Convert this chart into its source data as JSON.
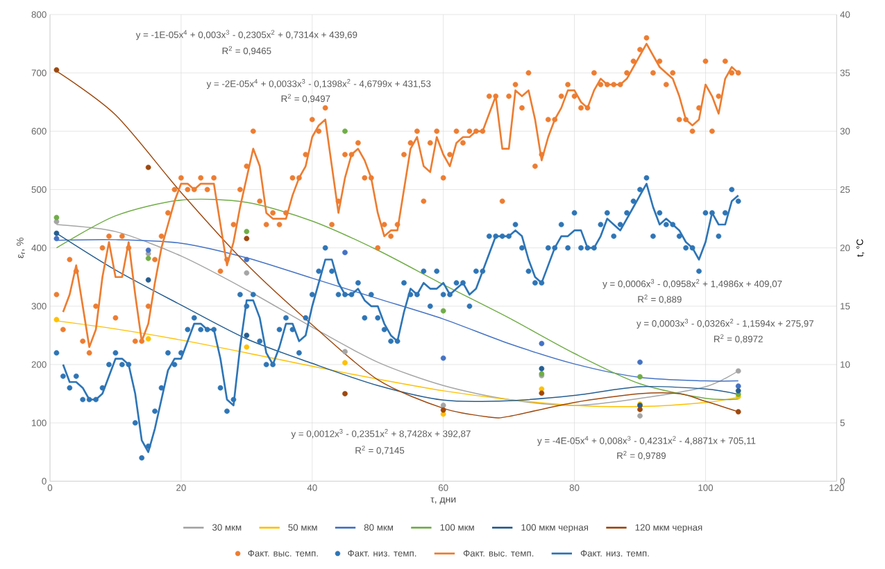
{
  "chart_data": {
    "type": "line",
    "xlabel": "τ, дни",
    "ylabel": "ε$_{r}$, %",
    "y2label": "t, °C",
    "xlim": [
      0,
      120
    ],
    "xticks": [
      0,
      20,
      40,
      60,
      80,
      100,
      120
    ],
    "ylim": [
      0,
      800
    ],
    "yticks": [
      0,
      100,
      200,
      300,
      400,
      500,
      600,
      700,
      800
    ],
    "y2lim": [
      0,
      40
    ],
    "y2ticks": [
      0,
      5,
      10,
      15,
      20,
      25,
      30,
      35,
      40
    ],
    "grid": true,
    "legend": "bottom",
    "annotations": [
      "y = -1E-05x$^{4}$ + 0,003x$^{3}$ - 0,2305x$^{2}$ + 0,7314x + 439,69",
      "R$^{2}$ = 0,9465",
      "y = -2E-05x$^{4}$ + 0,0033x$^{3}$ - 0,1398x$^{2}$ - 4,6799x + 431,53",
      "R$^{2}$ = 0,9497",
      "y = 0,0006x$^{3}$ - 0,0958x$^{2}$ + 1,4986x + 409,07",
      "R$^{2}$ = 0,889",
      "y = 0,0003x$^{3}$ - 0,0326x$^{2}$ - 1,1594x + 275,97",
      "R$^{2}$ = 0,8972",
      "y = 0,0012x$^{3}$ - 0,2351x$^{2}$ + 8,7428x + 392,87",
      "R$^{2}$ = 0,7145",
      "y = -4E-05x$^{4}$ + 0,008x$^{3}$ - 0,4231x$^{2}$ - 4,8871x + 705,11",
      "R$^{2}$ = 0,9789"
    ],
    "series": [
      {
        "name": "30 мкм",
        "color": "#a5a5a5",
        "x": [
          1,
          10,
          20,
          30,
          40,
          50,
          60,
          70,
          80,
          90,
          100,
          105
        ],
        "values": [
          440,
          428,
          386,
          328,
          264,
          204,
          164,
          140,
          130,
          142,
          162,
          189
        ]
      },
      {
        "name": "50 мкм",
        "color": "#ffc000",
        "x": [
          1,
          10,
          20,
          30,
          40,
          50,
          60,
          70,
          80,
          90,
          100,
          105
        ],
        "values": [
          275,
          261,
          242,
          220,
          197,
          175,
          155,
          140,
          130,
          128,
          135,
          144
        ]
      },
      {
        "name": "80 мкм",
        "color": "#4472c4",
        "x": [
          1,
          10,
          20,
          30,
          40,
          50,
          60,
          70,
          80,
          90,
          100,
          105
        ],
        "values": [
          413,
          414,
          408,
          383,
          348,
          313,
          278,
          236,
          201,
          178,
          172,
          172
        ]
      },
      {
        "name": "100 мкм",
        "color": "#70ad47",
        "x": [
          1,
          10,
          20,
          30,
          40,
          50,
          60,
          70,
          80,
          90,
          100,
          105
        ],
        "values": [
          400,
          455,
          482,
          478,
          446,
          396,
          337,
          280,
          219,
          167,
          142,
          141
        ]
      },
      {
        "name": "100 мкм черная",
        "color": "#255e91",
        "x": [
          1,
          10,
          20,
          30,
          40,
          50,
          60,
          70,
          80,
          90,
          100,
          105
        ],
        "values": [
          425,
          362,
          302,
          244,
          202,
          164,
          139,
          138,
          147,
          162,
          158,
          149
        ]
      },
      {
        "name": "120 мкм черная",
        "color": "#9e480e",
        "x": [
          1,
          10,
          20,
          30,
          40,
          50,
          60,
          67,
          70,
          80,
          90,
          96,
          100,
          105
        ],
        "values": [
          703,
          628,
          495,
          372,
          268,
          174,
          125,
          110,
          111,
          135,
          150,
          150,
          137,
          119
        ]
      },
      {
        "name": "Факт. выс. темп.",
        "type": "scatter",
        "marker": "circle",
        "axis": "y2",
        "color": "#ed7d31",
        "x": [
          1,
          2,
          3,
          4,
          5,
          6,
          7,
          8,
          9,
          10,
          11,
          12,
          13,
          14,
          15,
          16,
          17,
          18,
          19,
          20,
          21,
          22,
          23,
          24,
          25,
          26,
          27,
          28,
          29,
          30,
          31,
          32,
          33,
          34,
          35,
          36,
          37,
          38,
          39,
          40,
          41,
          42,
          43,
          44,
          45,
          46,
          47,
          48,
          49,
          50,
          51,
          52,
          53,
          54,
          55,
          56,
          57,
          58,
          59,
          60,
          61,
          62,
          63,
          64,
          65,
          66,
          67,
          68,
          69,
          70,
          71,
          72,
          73,
          74,
          75,
          76,
          77,
          78,
          79,
          80,
          81,
          82,
          83,
          84,
          85,
          86,
          87,
          88,
          89,
          90,
          91,
          92,
          93,
          94,
          95,
          96,
          97,
          98,
          99,
          100,
          101,
          102,
          103,
          104,
          105
        ],
        "values": [
          16,
          13,
          19,
          18,
          12,
          11,
          15,
          20,
          21,
          14,
          21,
          20,
          12,
          12,
          15,
          19,
          21,
          23,
          25,
          26,
          25,
          25,
          26,
          25,
          26,
          18,
          19,
          22,
          25,
          27,
          30,
          24,
          22,
          23,
          22,
          23,
          26,
          26,
          28,
          31,
          30,
          32,
          22,
          24,
          28,
          28,
          29,
          26,
          26,
          20,
          22,
          21,
          22,
          28,
          29,
          30,
          24,
          29,
          30,
          26,
          28,
          30,
          29,
          30,
          30,
          30,
          33,
          33,
          24,
          33,
          34,
          32,
          35,
          27,
          28,
          31,
          31,
          33,
          34,
          33,
          32,
          32,
          35,
          34,
          34,
          34,
          34,
          35,
          36,
          37,
          38,
          35,
          36,
          34,
          35,
          31,
          31,
          30,
          32,
          36,
          30,
          33,
          36,
          35,
          35
        ]
      },
      {
        "name": "Факт. низ. темп.",
        "type": "scatter",
        "marker": "circle",
        "axis": "y2",
        "color": "#2e75b6",
        "x": [
          1,
          2,
          3,
          4,
          5,
          6,
          7,
          8,
          9,
          10,
          11,
          12,
          13,
          14,
          15,
          16,
          17,
          18,
          19,
          20,
          21,
          22,
          23,
          24,
          25,
          26,
          27,
          28,
          29,
          30,
          31,
          32,
          33,
          34,
          35,
          36,
          37,
          38,
          39,
          40,
          41,
          42,
          43,
          44,
          45,
          46,
          47,
          48,
          49,
          50,
          51,
          52,
          53,
          54,
          55,
          56,
          57,
          58,
          59,
          60,
          61,
          62,
          63,
          64,
          65,
          66,
          67,
          68,
          69,
          70,
          71,
          72,
          73,
          74,
          75,
          76,
          77,
          78,
          79,
          80,
          81,
          82,
          83,
          84,
          85,
          86,
          87,
          88,
          89,
          90,
          91,
          92,
          93,
          94,
          95,
          96,
          97,
          98,
          99,
          100,
          101,
          102,
          103,
          104,
          105
        ],
        "values": [
          11,
          9,
          8,
          9,
          7,
          7,
          7,
          8,
          10,
          11,
          10,
          10,
          5,
          2,
          3,
          6,
          8,
          11,
          10,
          11,
          13,
          14,
          13,
          13,
          13,
          8,
          6,
          7,
          16,
          15,
          16,
          12,
          10,
          10,
          13,
          14,
          13,
          11,
          14,
          16,
          18,
          20,
          18,
          16,
          16,
          16,
          17,
          14,
          16,
          14,
          13,
          12,
          12,
          17,
          16,
          16,
          18,
          15,
          18,
          16,
          16,
          17,
          17,
          15,
          18,
          18,
          21,
          21,
          21,
          21,
          22,
          20,
          18,
          17,
          17,
          20,
          20,
          22,
          20,
          23,
          20,
          20,
          20,
          22,
          23,
          21,
          22,
          23,
          24,
          25,
          26,
          21,
          23,
          22,
          22,
          21,
          20,
          20,
          18,
          23,
          23,
          21,
          23,
          25,
          24
        ]
      },
      {
        "name": "Факт. выс. темп.",
        "type": "line",
        "axis": "y2",
        "color": "#ed7d31",
        "x": [
          2,
          3,
          4,
          5,
          6,
          7,
          8,
          9,
          10,
          11,
          12,
          13,
          14,
          15,
          16,
          17,
          18,
          19,
          20,
          21,
          22,
          23,
          24,
          25,
          26,
          27,
          28,
          29,
          30,
          31,
          32,
          33,
          34,
          35,
          36,
          37,
          38,
          39,
          40,
          41,
          42,
          43,
          44,
          45,
          46,
          47,
          48,
          49,
          50,
          51,
          52,
          53,
          54,
          55,
          56,
          57,
          58,
          59,
          60,
          61,
          62,
          63,
          64,
          65,
          66,
          67,
          68,
          69,
          70,
          71,
          72,
          73,
          74,
          75,
          76,
          77,
          78,
          79,
          80,
          81,
          82,
          83,
          84,
          85,
          86,
          87,
          88,
          89,
          90,
          91,
          92,
          93,
          94,
          95,
          96,
          97,
          98,
          99,
          100,
          101,
          102,
          103,
          104,
          105
        ],
        "values": [
          14.5,
          16,
          18.5,
          15,
          11.5,
          13,
          17.5,
          20.5,
          17.5,
          17.5,
          20.5,
          16,
          12,
          13.5,
          17,
          20,
          22,
          24,
          25.5,
          25.5,
          25,
          25.5,
          25.5,
          25.5,
          22,
          18.5,
          20.5,
          23.5,
          26,
          28.5,
          27,
          23,
          22.5,
          22.5,
          22.5,
          24.5,
          26,
          27,
          29.5,
          30.5,
          31,
          27,
          23,
          26,
          28,
          28.5,
          27.5,
          26,
          23,
          21,
          21.5,
          21.5,
          25,
          28.5,
          29.5,
          27,
          26.5,
          29.5,
          28,
          27,
          29,
          29.5,
          29.5,
          30,
          30,
          31.5,
          33,
          28.5,
          28.5,
          33.5,
          33,
          33.5,
          31,
          27.5,
          29.5,
          31,
          32,
          33.5,
          33.5,
          32.5,
          32,
          33.5,
          34.5,
          34,
          34,
          34,
          34.5,
          35.5,
          36.5,
          37.5,
          36.5,
          35.5,
          35,
          34.5,
          33,
          31,
          30.5,
          31,
          34,
          33,
          31.5,
          34.5,
          35.5,
          35
        ]
      },
      {
        "name": "Факт. низ. темп.",
        "type": "line",
        "axis": "y2",
        "color": "#2e75b6",
        "x": [
          2,
          3,
          4,
          5,
          6,
          7,
          8,
          9,
          10,
          11,
          12,
          13,
          14,
          15,
          16,
          17,
          18,
          19,
          20,
          21,
          22,
          23,
          24,
          25,
          26,
          27,
          28,
          29,
          30,
          31,
          32,
          33,
          34,
          35,
          36,
          37,
          38,
          39,
          40,
          41,
          42,
          43,
          44,
          45,
          46,
          47,
          48,
          49,
          50,
          51,
          52,
          53,
          54,
          55,
          56,
          57,
          58,
          59,
          60,
          61,
          62,
          63,
          64,
          65,
          66,
          67,
          68,
          69,
          70,
          71,
          72,
          73,
          74,
          75,
          76,
          77,
          78,
          79,
          80,
          81,
          82,
          83,
          84,
          85,
          86,
          87,
          88,
          89,
          90,
          91,
          92,
          93,
          94,
          95,
          96,
          97,
          98,
          99,
          100,
          101,
          102,
          103,
          104,
          105
        ],
        "values": [
          10,
          8.5,
          8.5,
          8,
          7,
          7,
          7.5,
          9,
          10.5,
          10.5,
          10,
          7.5,
          3.5,
          2.5,
          4.5,
          7,
          9.5,
          10.5,
          10.5,
          12,
          13.5,
          13.5,
          13,
          13,
          10.5,
          7,
          6.5,
          11.5,
          15.5,
          15.5,
          14,
          11,
          10,
          11.5,
          13.5,
          13.5,
          12,
          12.5,
          15,
          17,
          19,
          19,
          17,
          16,
          16,
          16.5,
          15.5,
          15,
          15,
          13.5,
          12.5,
          12,
          14.5,
          16.5,
          16,
          17,
          16.5,
          16.5,
          17,
          16,
          16.5,
          17,
          16,
          16.5,
          18,
          19.5,
          21,
          21,
          21,
          21.5,
          21,
          19,
          17.5,
          17,
          18.5,
          20,
          21,
          21,
          21.5,
          21.5,
          20,
          20,
          21,
          22.5,
          22,
          21.5,
          22.5,
          23.5,
          24.5,
          25.5,
          23.5,
          22,
          22.5,
          22,
          21.5,
          20.5,
          20,
          19,
          20.5,
          23,
          22,
          22,
          24,
          24.5
        ]
      },
      {
        "type": "scatter",
        "marker": "circle",
        "color": "#a5a5a5",
        "x": [
          1,
          15,
          30,
          45,
          60,
          75,
          90,
          105
        ],
        "values": [
          445,
          390,
          357,
          222,
          130,
          181,
          112,
          189
        ]
      },
      {
        "type": "scatter",
        "marker": "circle",
        "color": "#ffc000",
        "x": [
          1,
          15,
          30,
          45,
          60,
          75,
          90,
          105
        ],
        "values": [
          277,
          244,
          230,
          203,
          115,
          158,
          132,
          145
        ]
      },
      {
        "type": "scatter",
        "marker": "circle",
        "color": "#4472c4",
        "x": [
          1,
          15,
          30,
          45,
          60,
          75,
          90,
          105
        ],
        "values": [
          416,
          396,
          380,
          392,
          211,
          236,
          204,
          163
        ]
      },
      {
        "type": "scatter",
        "marker": "circle",
        "color": "#70ad47",
        "x": [
          1,
          15,
          30,
          45,
          60,
          75,
          90,
          105
        ],
        "values": [
          452,
          382,
          428,
          600,
          292,
          184,
          179,
          149
        ]
      },
      {
        "type": "scatter",
        "marker": "circle",
        "color": "#255e91",
        "x": [
          1,
          15,
          30,
          45,
          60,
          75,
          90,
          105
        ],
        "values": [
          425,
          345,
          250,
          null,
          null,
          193,
          130,
          155
        ]
      },
      {
        "type": "scatter",
        "marker": "circle",
        "color": "#9e480e",
        "x": [
          1,
          15,
          30,
          45,
          60,
          75,
          90,
          105
        ],
        "values": [
          705,
          538,
          416,
          150,
          122,
          151,
          123,
          119
        ]
      }
    ]
  }
}
